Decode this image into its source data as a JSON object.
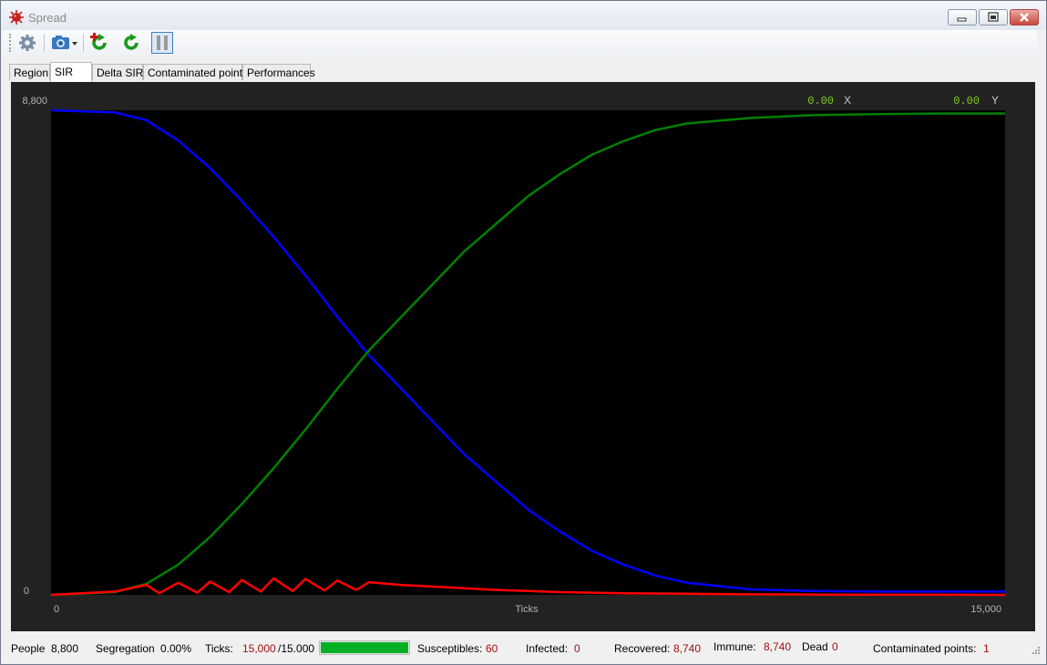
{
  "window": {
    "title": "Spread"
  },
  "toolbar": {
    "buttons": [
      "settings-icon",
      "camera-icon",
      "add-restart-icon",
      "restart-icon",
      "pause-icon"
    ]
  },
  "tabs": [
    "Region",
    "SIR",
    "Delta SIR",
    "Contaminated points",
    "Performances"
  ],
  "active_tab": "SIR",
  "readout": {
    "x_value": "0.00",
    "x_label": "X",
    "y_value": "0.00",
    "y_label": "Y"
  },
  "status": {
    "people_label": "People",
    "people_value": "8,800",
    "segregation_label": "Segregation",
    "segregation_value": "0.00%",
    "ticks_label": "Ticks:",
    "ticks_value": "15,000",
    "ticks_total": "/15.000",
    "progress_fraction": 1.0,
    "susceptibles_label": "Susceptibles:",
    "susceptibles_value": "60",
    "infected_label": "Infected:",
    "infected_value": "0",
    "recovered_label": "Recovered:",
    "recovered_value": "8,740",
    "immune_label": "Immune:",
    "immune_value": "8,740",
    "dead_label": "Dead",
    "dead_value": "0",
    "contaminated_label": "Contaminated points:",
    "contaminated_value": "1"
  },
  "chart_data": {
    "type": "line",
    "xlabel": "Ticks",
    "x_tick_labels": [
      "0",
      "15,000"
    ],
    "y_tick_labels": [
      "0",
      "8,800"
    ],
    "xlim": [
      0,
      15000
    ],
    "ylim": [
      0,
      8800
    ],
    "grid": false,
    "background": "#000000",
    "series": [
      {
        "color": "#0000ff",
        "x": [
          0,
          1000,
          1500,
          2000,
          2500,
          3000,
          3500,
          4000,
          4500,
          5000,
          5500,
          6000,
          6500,
          7000,
          7500,
          8000,
          8500,
          9000,
          9500,
          10000,
          11000,
          12000,
          13000,
          14000,
          15000
        ],
        "y": [
          8800,
          8760,
          8620,
          8250,
          7750,
          7150,
          6500,
          5800,
          5050,
          4350,
          3750,
          3150,
          2550,
          2050,
          1550,
          1150,
          800,
          550,
          350,
          220,
          100,
          70,
          60,
          60,
          60
        ]
      },
      {
        "color": "#008000",
        "x": [
          0,
          1000,
          1500,
          2000,
          2500,
          3000,
          3500,
          4000,
          4500,
          5000,
          5500,
          6000,
          6500,
          7000,
          7500,
          8000,
          8500,
          9000,
          9500,
          10000,
          11000,
          12000,
          13000,
          14000,
          15000
        ],
        "y": [
          0,
          50,
          200,
          550,
          1050,
          1650,
          2300,
          3000,
          3740,
          4440,
          5040,
          5640,
          6240,
          6740,
          7240,
          7640,
          7990,
          8240,
          8440,
          8560,
          8660,
          8710,
          8730,
          8740,
          8740
        ]
      },
      {
        "color": "#ff0000",
        "x": [
          0,
          1000,
          1500,
          1700,
          2000,
          2300,
          2500,
          2800,
          3000,
          3300,
          3500,
          3800,
          4000,
          4300,
          4500,
          4800,
          5000,
          5500,
          6000,
          6500,
          7000,
          7500,
          8000,
          9000,
          10000,
          11000,
          12000,
          13000,
          14000,
          15000
        ],
        "y": [
          0,
          60,
          180,
          30,
          220,
          40,
          240,
          50,
          270,
          60,
          300,
          70,
          290,
          80,
          260,
          90,
          230,
          180,
          150,
          120,
          90,
          70,
          50,
          30,
          20,
          10,
          5,
          2,
          1,
          0
        ]
      }
    ]
  }
}
